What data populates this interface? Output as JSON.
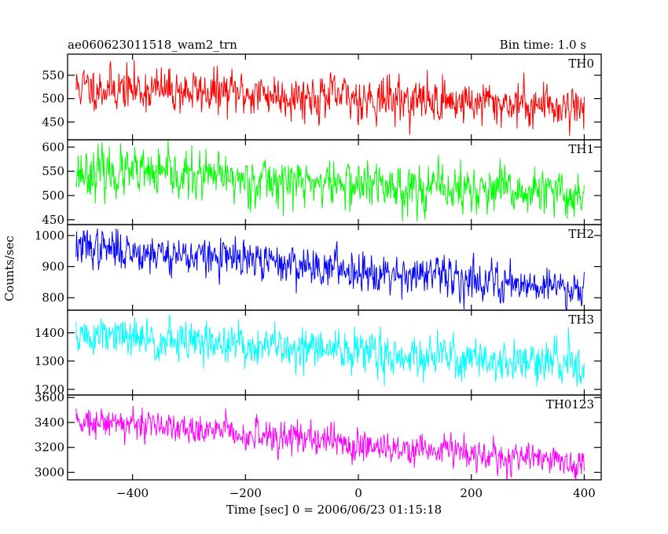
{
  "header": {
    "title": "ae060623011518_wam2_trn",
    "bin_time": "Bin time: 1.0 s"
  },
  "chart_data": {
    "type": "line",
    "title": "ae060623011518_wam2_trn",
    "subtitle": "Bin time: 1.0 s",
    "xlabel": "Time [sec] 0 = 2006/06/23 01:15:18",
    "ylabel": "Counts/sec",
    "xlim": [
      -515,
      430
    ],
    "x_ticks": [
      -400,
      -200,
      0,
      200,
      400
    ],
    "x_tick_labels": [
      "−400",
      "−200",
      "0",
      "200",
      "400"
    ],
    "x_start": -500,
    "x_end": 400,
    "x_step": 1,
    "grid": false,
    "panels": [
      {
        "name": "TH0",
        "color": "#ff0000",
        "ylim": [
          412,
          595
        ],
        "y_ticks": [
          450,
          500,
          550
        ],
        "trend": {
          "start": 525,
          "end": 483
        },
        "noise_sd": 23,
        "seed": 11
      },
      {
        "name": "TH1",
        "color": "#00ff00",
        "ylim": [
          440,
          615
        ],
        "y_ticks": [
          450,
          500,
          550,
          600
        ],
        "trend": {
          "start": 550,
          "end": 500
        },
        "noise_sd": 24,
        "seed": 23
      },
      {
        "name": "TH2",
        "color": "#0000ff",
        "ylim": [
          760,
          1035
        ],
        "y_ticks": [
          800,
          900,
          1000
        ],
        "trend": {
          "start": 965,
          "end": 830
        },
        "noise_sd": 30,
        "seed": 37
      },
      {
        "name": "TH3",
        "color": "#00ffff",
        "ylim": [
          1180,
          1480
        ],
        "y_ticks": [
          1200,
          1300,
          1400
        ],
        "trend": {
          "start": 1390,
          "end": 1285
        },
        "noise_sd": 36,
        "seed": 51
      },
      {
        "name": "TH0123",
        "color": "#ff00ff",
        "ylim": [
          2940,
          3620
        ],
        "y_ticks": [
          3000,
          3200,
          3400,
          3600
        ],
        "trend": {
          "start": 3430,
          "end": 3070
        },
        "noise_sd": 62,
        "seed": 73
      }
    ]
  }
}
